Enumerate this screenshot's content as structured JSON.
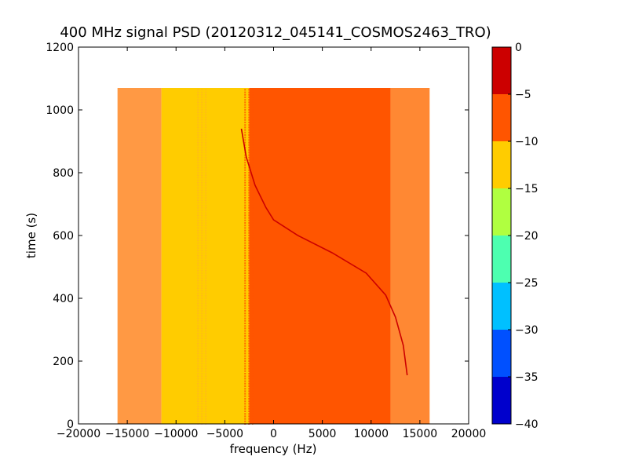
{
  "chart_data": {
    "type": "heatmap",
    "title": "400 MHz signal PSD (20120312_045141_COSMOS2463_TRO)",
    "xlabel": "frequency (Hz)",
    "ylabel": "time (s)",
    "xlim": [
      -20000,
      20000
    ],
    "ylim": [
      0,
      1200
    ],
    "xticks": [
      -20000,
      -15000,
      -10000,
      -5000,
      0,
      5000,
      10000,
      15000,
      20000
    ],
    "xtick_labels": [
      "−20000",
      "−15000",
      "−10000",
      "−5000",
      "0",
      "5000",
      "10000",
      "15000",
      "20000"
    ],
    "yticks": [
      0,
      200,
      400,
      600,
      800,
      1000,
      1200
    ],
    "ytick_labels": [
      "0",
      "200",
      "400",
      "600",
      "800",
      "1000",
      "1200"
    ],
    "data_extent": {
      "x": [
        -16000,
        16000
      ],
      "y": [
        0,
        1070
      ]
    },
    "frequency_bands": [
      {
        "x": [
          -16000,
          -11500
        ],
        "level": -7.5
      },
      {
        "x": [
          -11500,
          -2500
        ],
        "level": -12.5
      },
      {
        "x": [
          -2500,
          12000
        ],
        "level": -7.5
      },
      {
        "x": [
          12000,
          16000
        ],
        "level": -7.5
      }
    ],
    "signal_trace": {
      "level": -2.5,
      "points": [
        {
          "freq": -3300,
          "time": 940
        },
        {
          "freq": -2800,
          "time": 850
        },
        {
          "freq": -1900,
          "time": 760
        },
        {
          "freq": -800,
          "time": 690
        },
        {
          "freq": 0,
          "time": 650
        },
        {
          "freq": 2500,
          "time": 600
        },
        {
          "freq": 6000,
          "time": 545
        },
        {
          "freq": 9500,
          "time": 480
        },
        {
          "freq": 11500,
          "time": 410
        },
        {
          "freq": 12500,
          "time": 340
        },
        {
          "freq": 13300,
          "time": 250
        },
        {
          "freq": 13700,
          "time": 155
        }
      ]
    },
    "colorbar": {
      "ticks": [
        0,
        -5,
        -10,
        -15,
        -20,
        -25,
        -30,
        -35,
        -40
      ],
      "tick_labels": [
        "0",
        "−5",
        "−10",
        "−15",
        "−20",
        "−25",
        "−30",
        "−35",
        "−40"
      ],
      "levels": [
        {
          "from": -40,
          "to": -35,
          "color": "#0000cc"
        },
        {
          "from": -35,
          "to": -30,
          "color": "#0050ff"
        },
        {
          "from": -30,
          "to": -25,
          "color": "#00c0ff"
        },
        {
          "from": -25,
          "to": -20,
          "color": "#4dffb0"
        },
        {
          "from": -20,
          "to": -15,
          "color": "#b0ff40"
        },
        {
          "from": -15,
          "to": -10,
          "color": "#ffcc00"
        },
        {
          "from": -10,
          "to": -5,
          "color": "#ff5500"
        },
        {
          "from": -5,
          "to": 0,
          "color": "#cc0000"
        }
      ]
    },
    "colors": {
      "band_edge": "#ff9944",
      "band_main": "#ff5500",
      "band_yellow": "#ffcc00",
      "band_right": "#ff8833",
      "trace": "#cc0000"
    }
  }
}
